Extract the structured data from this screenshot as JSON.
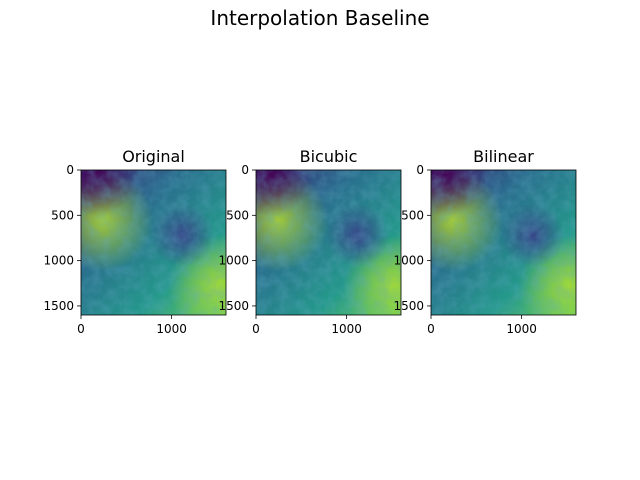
{
  "figure": {
    "title": "Interpolation Baseline"
  },
  "chart_data": [
    {
      "type": "heatmap",
      "title": "Original",
      "colormap": "viridis",
      "xlim": [
        0,
        1600
      ],
      "ylim": [
        1600,
        0
      ],
      "xticks": [
        0,
        1000
      ],
      "yticks": [
        0,
        500,
        1000,
        1500
      ],
      "xlabel": "",
      "ylabel": ""
    },
    {
      "type": "heatmap",
      "title": "Bicubic",
      "colormap": "viridis",
      "xlim": [
        0,
        1600
      ],
      "ylim": [
        1600,
        0
      ],
      "xticks": [
        0,
        1000
      ],
      "yticks": [
        0,
        500,
        1000,
        1500
      ],
      "xlabel": "",
      "ylabel": ""
    },
    {
      "type": "heatmap",
      "title": "Bilinear",
      "colormap": "viridis",
      "xlim": [
        0,
        1600
      ],
      "ylim": [
        1600,
        0
      ],
      "xticks": [
        0,
        1000
      ],
      "yticks": [
        0,
        500,
        1000,
        1500
      ],
      "xlabel": "",
      "ylabel": ""
    }
  ]
}
